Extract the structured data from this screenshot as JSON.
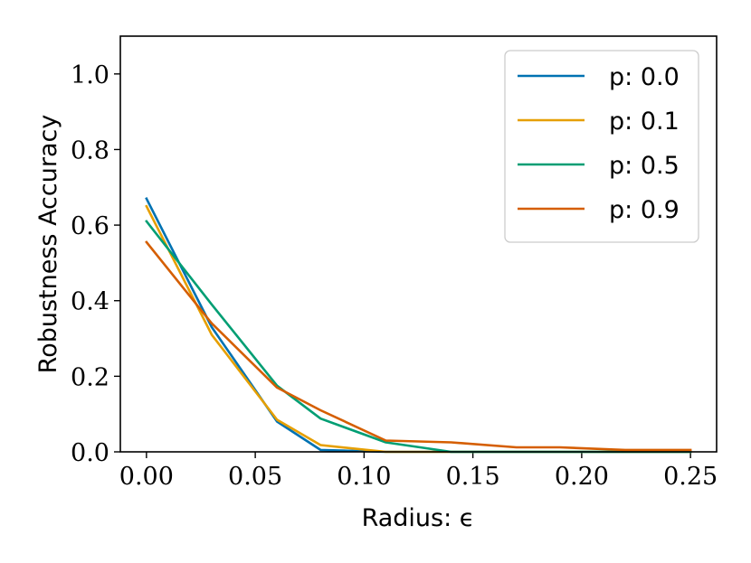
{
  "chart_data": {
    "type": "line",
    "xlabel": "Radius: ϵ",
    "ylabel": "Robustness Accuracy",
    "xlim": [
      -0.012,
      0.262
    ],
    "ylim": [
      0.0,
      1.1
    ],
    "xticks": [
      0.0,
      0.05,
      0.1,
      0.15,
      0.2,
      0.25
    ],
    "xtick_labels": [
      "0.00",
      "0.05",
      "0.10",
      "0.15",
      "0.20",
      "0.25"
    ],
    "yticks": [
      0.0,
      0.2,
      0.4,
      0.6,
      0.8,
      1.0
    ],
    "ytick_labels": [
      "0.0",
      "0.2",
      "0.4",
      "0.6",
      "0.8",
      "1.0"
    ],
    "grid": false,
    "legend_position": "top-right",
    "series": [
      {
        "name": "p:  0.0",
        "color": "#0072b2",
        "x": [
          0.0,
          0.03,
          0.06,
          0.08,
          0.11,
          0.14,
          0.17,
          0.19,
          0.22,
          0.25
        ],
        "y": [
          0.67,
          0.33,
          0.08,
          0.005,
          0.0,
          0.0,
          0.0,
          0.0,
          0.0,
          0.0
        ]
      },
      {
        "name": "p:  0.1",
        "color": "#e69f00",
        "x": [
          0.0,
          0.03,
          0.06,
          0.08,
          0.11,
          0.14,
          0.17,
          0.19,
          0.22,
          0.25
        ],
        "y": [
          0.65,
          0.31,
          0.085,
          0.018,
          0.0,
          0.0,
          0.0,
          0.0,
          0.0,
          0.0
        ]
      },
      {
        "name": "p:  0.5",
        "color": "#009e73",
        "x": [
          0.0,
          0.03,
          0.06,
          0.08,
          0.11,
          0.14,
          0.17,
          0.19,
          0.22,
          0.25
        ],
        "y": [
          0.61,
          0.39,
          0.175,
          0.088,
          0.025,
          0.0,
          0.0,
          0.0,
          0.0,
          0.0
        ]
      },
      {
        "name": "p:  0.9",
        "color": "#d55e00",
        "x": [
          0.0,
          0.03,
          0.06,
          0.08,
          0.11,
          0.14,
          0.17,
          0.19,
          0.22,
          0.25
        ],
        "y": [
          0.555,
          0.34,
          0.17,
          0.11,
          0.03,
          0.025,
          0.012,
          0.012,
          0.005,
          0.005
        ]
      }
    ]
  }
}
